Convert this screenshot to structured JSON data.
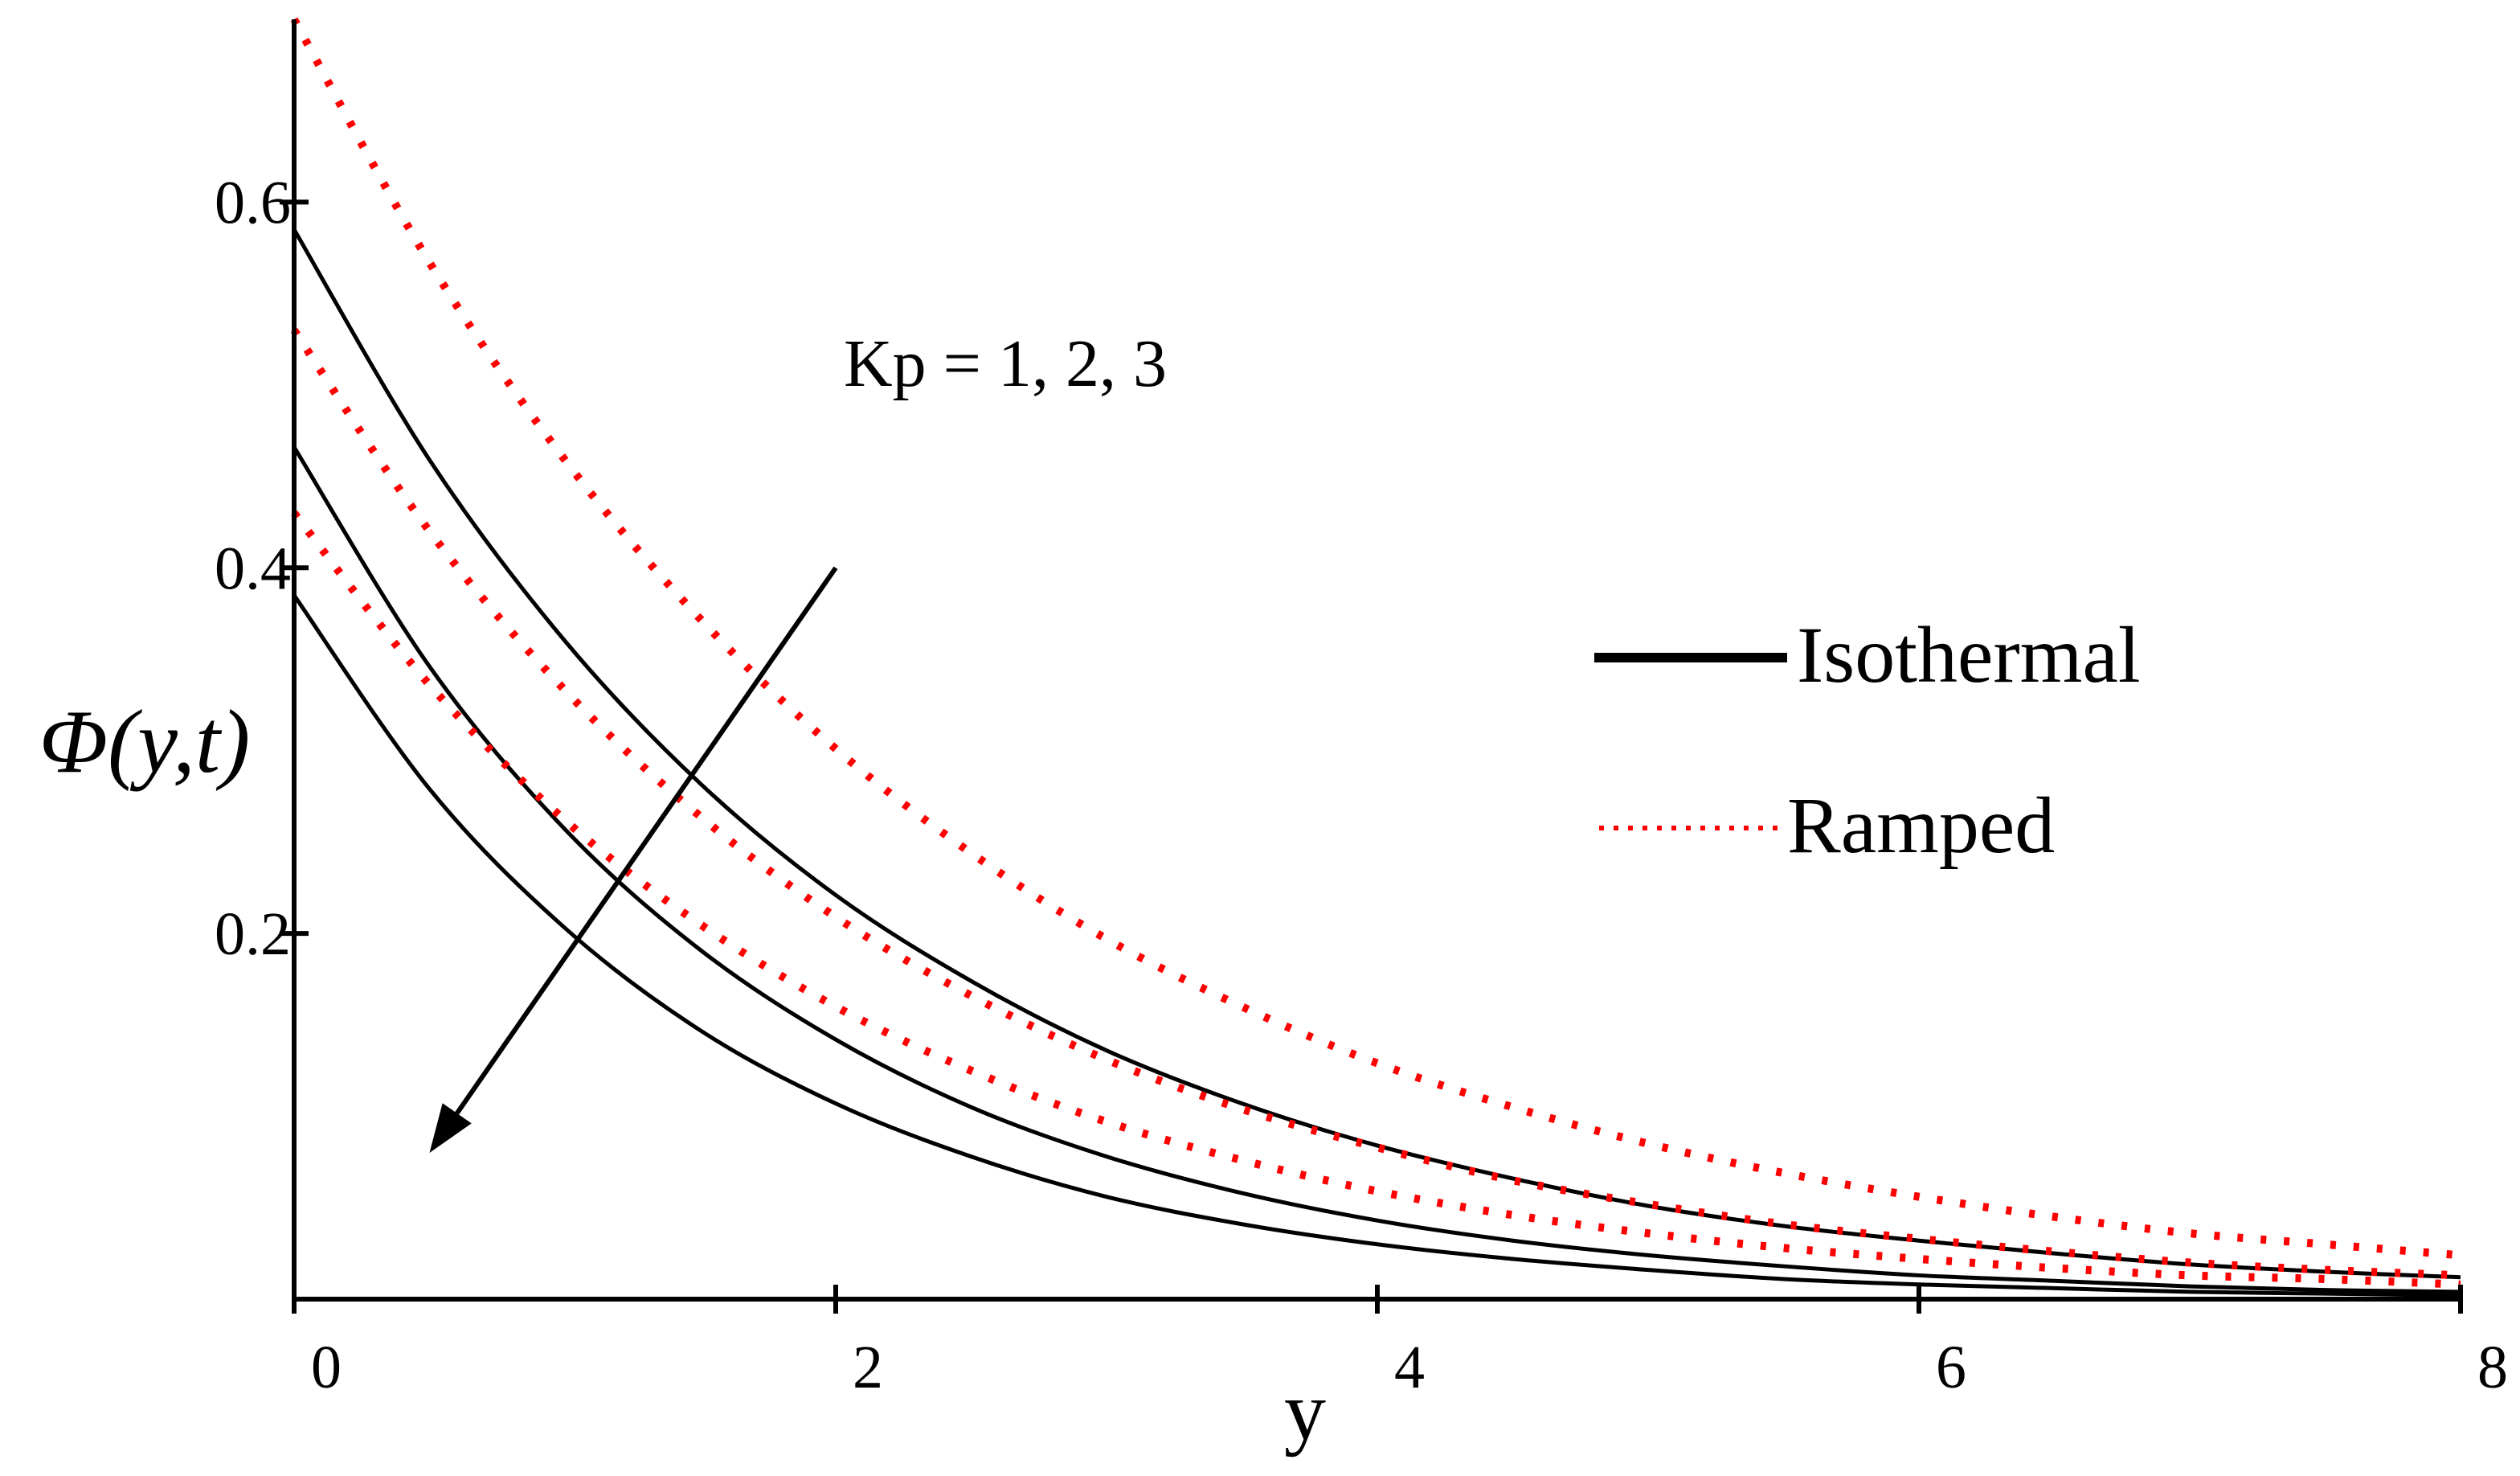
{
  "chart_data": {
    "type": "line",
    "title": "",
    "xlabel": "y",
    "ylabel": "Φ(y,t)",
    "xlim": [
      0,
      8
    ],
    "ylim": [
      0,
      0.7
    ],
    "xticks": [
      0,
      2,
      4,
      6,
      8
    ],
    "xtick_labels": [
      "0",
      "2",
      "4",
      "6",
      "8"
    ],
    "yticks": [
      0.2,
      0.4,
      0.6
    ],
    "ytick_labels": [
      "0.2",
      "0.4",
      "0.6"
    ],
    "grid": false,
    "legend_position": "right",
    "x": [
      0,
      0.5,
      1,
      1.5,
      2,
      2.5,
      3,
      3.5,
      4,
      4.5,
      5,
      5.5,
      6,
      6.5,
      7,
      7.5,
      8
    ],
    "series": [
      {
        "name": "Isothermal",
        "group": "isothermal",
        "Kp": 1,
        "color": "#000000",
        "style": "solid",
        "values": [
          0.585,
          0.459,
          0.36,
          0.282,
          0.221,
          0.174,
          0.136,
          0.107,
          0.084,
          0.066,
          0.051,
          0.04,
          0.032,
          0.025,
          0.019,
          0.015,
          0.012
        ]
      },
      {
        "name": "Isothermal",
        "group": "isothermal",
        "Kp": 2,
        "color": "#000000",
        "style": "solid",
        "values": [
          0.466,
          0.346,
          0.257,
          0.191,
          0.142,
          0.105,
          0.078,
          0.058,
          0.043,
          0.032,
          0.024,
          0.018,
          0.013,
          0.01,
          0.007,
          0.005,
          0.004
        ]
      },
      {
        "name": "Isothermal",
        "group": "isothermal",
        "Kp": 3,
        "color": "#000000",
        "style": "solid",
        "values": [
          0.385,
          0.279,
          0.203,
          0.147,
          0.107,
          0.078,
          0.056,
          0.041,
          0.03,
          0.022,
          0.016,
          0.011,
          0.008,
          0.006,
          0.004,
          0.003,
          0.002
        ]
      },
      {
        "name": "Ramped",
        "group": "ramped",
        "Kp": 1,
        "color": "#ff0000",
        "style": "dotted",
        "values": [
          0.7,
          0.567,
          0.459,
          0.372,
          0.301,
          0.244,
          0.197,
          0.16,
          0.129,
          0.105,
          0.085,
          0.069,
          0.056,
          0.045,
          0.036,
          0.03,
          0.024
        ]
      },
      {
        "name": "Ramped",
        "group": "ramped",
        "Kp": 2,
        "color": "#ff0000",
        "style": "dotted",
        "values": [
          0.53,
          0.42,
          0.333,
          0.264,
          0.209,
          0.166,
          0.131,
          0.104,
          0.083,
          0.065,
          0.052,
          0.041,
          0.033,
          0.026,
          0.02,
          0.016,
          0.013
        ]
      },
      {
        "name": "Ramped",
        "group": "ramped",
        "Kp": 3,
        "color": "#ff0000",
        "style": "dotted",
        "values": [
          0.43,
          0.336,
          0.262,
          0.205,
          0.16,
          0.125,
          0.097,
          0.076,
          0.059,
          0.046,
          0.036,
          0.028,
          0.022,
          0.017,
          0.013,
          0.011,
          0.008
        ]
      }
    ],
    "legend": [
      {
        "label": "Isothermal",
        "color": "#000000",
        "style": "solid"
      },
      {
        "label": "Ramped",
        "color": "#ff0000",
        "style": "dotted"
      }
    ],
    "annotation": {
      "text": "Kp = 1, 2, 3",
      "arrow_from": [
        2.0,
        0.4
      ],
      "arrow_to": [
        0.5,
        0.08
      ]
    }
  }
}
